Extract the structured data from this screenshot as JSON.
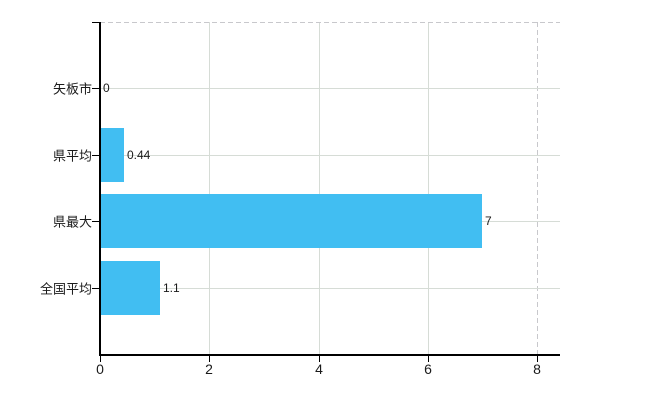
{
  "window": {
    "background": "#ffffff"
  },
  "chart_data": {
    "type": "bar",
    "orientation": "horizontal",
    "title": "",
    "xlabel": "",
    "ylabel": "",
    "categories": [
      "矢板市",
      "県平均",
      "県最大",
      "全国平均"
    ],
    "values": [
      0,
      0.44,
      7,
      1.1
    ],
    "value_labels": [
      "0",
      "0.44",
      "7",
      "1.1"
    ],
    "x_tick_labels": [
      "0",
      "2",
      "4",
      "6",
      "8"
    ],
    "x_tick_values": [
      0,
      2,
      4,
      6,
      8
    ],
    "xlim": [
      0,
      8.42
    ],
    "grid": true,
    "legend": false,
    "colors": {
      "bar": "#41bef2",
      "grid_solid": "#d6dcd6",
      "grid_dashed": "#c8c8cc",
      "axis": "#000000",
      "text": "#1a1a1a"
    }
  }
}
